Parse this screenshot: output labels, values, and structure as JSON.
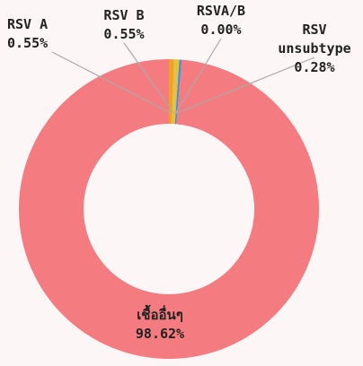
{
  "chart_data": {
    "type": "pie",
    "categories": [
      "RSV A",
      "RSV B",
      "RSVA/B",
      "RSV unsubtype",
      "เชื้ออื่นๆ"
    ],
    "values": [
      0.55,
      0.55,
      0.0,
      0.28,
      98.62
    ],
    "value_labels": [
      "0.55%",
      "0.55%",
      "0.00%",
      "0.28%",
      "98.62%"
    ],
    "colors": [
      "#f0a030",
      "#e4c23c",
      "#8bc34a",
      "#4a90d9",
      "#f47b7f"
    ],
    "donut": true
  }
}
